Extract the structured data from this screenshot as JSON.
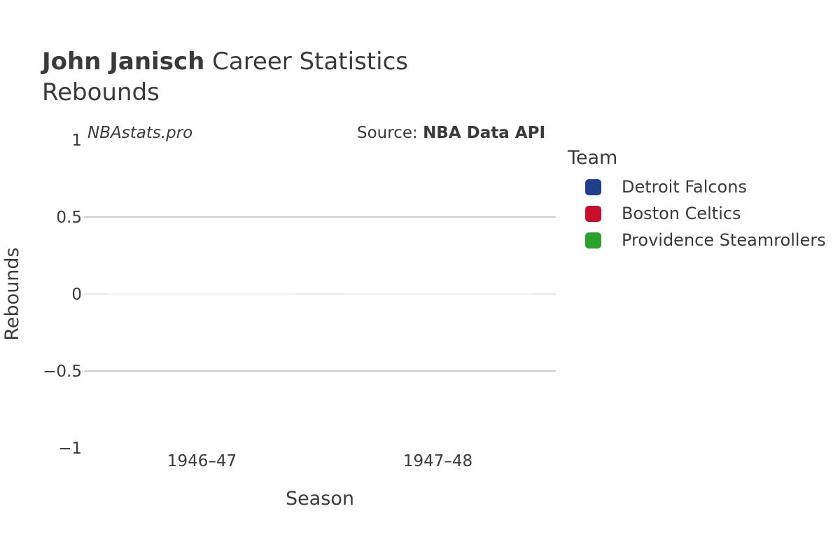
{
  "header": {
    "title_bold": "John Janisch",
    "title_rest": " Career Statistics",
    "subtitle": "Rebounds"
  },
  "watermark": "NBAstats.pro",
  "source": {
    "prefix": "Source: ",
    "name": "NBA Data API"
  },
  "legend": {
    "title": "Team",
    "items": [
      {
        "label": "Detroit Falcons",
        "color": "#1f3f8a"
      },
      {
        "label": "Boston Celtics",
        "color": "#c8102e"
      },
      {
        "label": "Providence Steamrollers",
        "color": "#2ca02c"
      }
    ]
  },
  "chart_data": {
    "type": "bar",
    "title": "John Janisch Career Statistics",
    "subtitle": "Rebounds",
    "xlabel": "Season",
    "ylabel": "Rebounds",
    "categories": [
      "1946–47",
      "1947–48"
    ],
    "ylim": [
      -1,
      1
    ],
    "yticks": [
      1,
      0.5,
      0,
      -0.5,
      -1
    ],
    "ytick_labels": [
      "1",
      "0.5",
      "0",
      "−0.5",
      "−1"
    ],
    "grid": true,
    "legend_position": "right",
    "series": [
      {
        "name": "Detroit Falcons",
        "values": [
          0,
          null
        ]
      },
      {
        "name": "Boston Celtics",
        "values": [
          null,
          0
        ]
      },
      {
        "name": "Providence Steamrollers",
        "values": [
          null,
          0
        ]
      }
    ]
  }
}
